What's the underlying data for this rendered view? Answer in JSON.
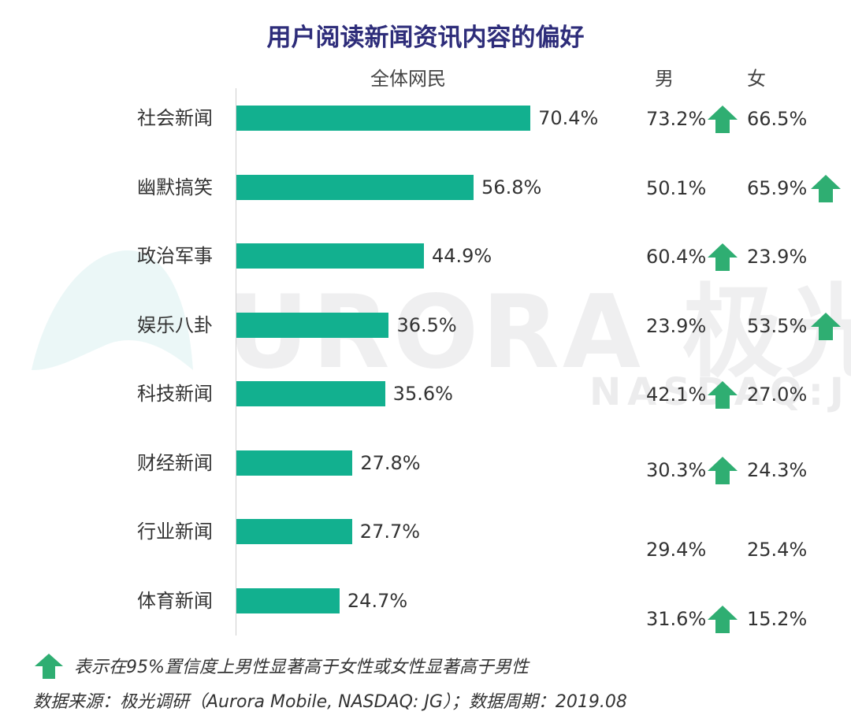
{
  "title": "用户阅读新闻资讯内容的偏好",
  "headers": {
    "all": "全体网民",
    "male": "男",
    "female": "女"
  },
  "watermark": {
    "main": "URORA 极光",
    "sub": "NASDAQ:JG"
  },
  "legend_note": "表示在95%置信度上男性显著高于女性或女性显著高于男性",
  "source": "数据来源：极光调研（Aurora Mobile, NASDAQ: JG）；数据周期：2019.08",
  "colors": {
    "bar": "#12b08f",
    "arrow": "#2fae72",
    "title": "#2e2d7a"
  },
  "chart_data": {
    "type": "bar",
    "orientation": "horizontal",
    "title": "用户阅读新闻资讯内容的偏好",
    "categories": [
      "社会新闻",
      "幽默搞笑",
      "政治军事",
      "娱乐八卦",
      "科技新闻",
      "财经新闻",
      "行业新闻",
      "体育新闻"
    ],
    "series": [
      {
        "name": "全体网民",
        "values": [
          70.4,
          56.8,
          44.9,
          36.5,
          35.6,
          27.8,
          27.7,
          24.7
        ]
      },
      {
        "name": "男",
        "values": [
          73.2,
          50.1,
          60.4,
          23.9,
          42.1,
          30.3,
          29.4,
          31.6
        ]
      },
      {
        "name": "女",
        "values": [
          66.5,
          65.9,
          23.9,
          53.5,
          27.0,
          24.3,
          25.4,
          15.2
        ]
      }
    ],
    "labels": {
      "all": [
        "70.4%",
        "56.8%",
        "44.9%",
        "36.5%",
        "35.6%",
        "27.8%",
        "27.7%",
        "24.7%"
      ],
      "male": [
        "73.2%",
        "50.1%",
        "60.4%",
        "23.9%",
        "42.1%",
        "30.3%",
        "29.4%",
        "31.6%"
      ],
      "female": [
        "66.5%",
        "65.9%",
        "23.9%",
        "53.5%",
        "27.0%",
        "24.3%",
        "25.4%",
        "15.2%"
      ]
    },
    "significant_higher": [
      "male",
      "female",
      "male",
      "female",
      "male",
      "male",
      "none",
      "male"
    ],
    "unit": "%"
  }
}
